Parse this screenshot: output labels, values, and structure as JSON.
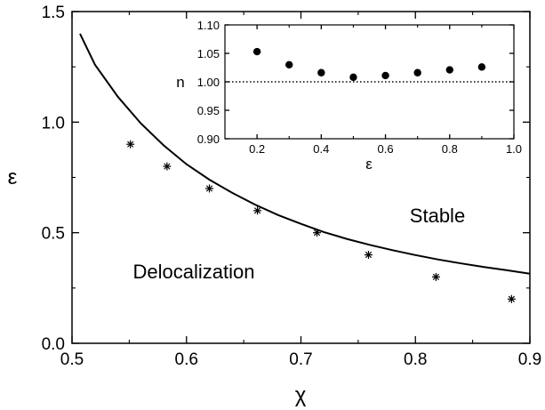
{
  "chart_data": [
    {
      "type": "scatter",
      "title": "",
      "xlabel": "χ",
      "ylabel": "ε",
      "xlim": [
        0.5,
        0.9
      ],
      "ylim": [
        0.0,
        1.5
      ],
      "xticks": [
        0.5,
        0.6,
        0.7,
        0.8,
        0.9
      ],
      "yticks": [
        0.0,
        0.5,
        1.0,
        1.5
      ],
      "xtick_labels": [
        "0.5",
        "0.6",
        "0.7",
        "0.8",
        "0.9"
      ],
      "ytick_labels": [
        "0.0",
        "0.5",
        "1.0",
        "1.5"
      ],
      "grid": false,
      "legend": "none",
      "series": [
        {
          "type": "scatter",
          "marker": "asterisk",
          "color": "#000000",
          "x": [
            0.551,
            0.583,
            0.62,
            0.662,
            0.714,
            0.759,
            0.818,
            0.884
          ],
          "y": [
            0.9,
            0.8,
            0.7,
            0.6,
            0.5,
            0.4,
            0.3,
            0.2
          ]
        },
        {
          "type": "line",
          "color": "#000000",
          "x": [
            0.507,
            0.52,
            0.54,
            0.56,
            0.58,
            0.6,
            0.62,
            0.64,
            0.66,
            0.68,
            0.7,
            0.72,
            0.74,
            0.76,
            0.78,
            0.8,
            0.82,
            0.84,
            0.86,
            0.88,
            0.9
          ],
          "y": [
            1.4,
            1.26,
            1.115,
            0.995,
            0.895,
            0.81,
            0.74,
            0.68,
            0.627,
            0.58,
            0.54,
            0.503,
            0.472,
            0.445,
            0.421,
            0.399,
            0.379,
            0.361,
            0.345,
            0.33,
            0.315
          ]
        }
      ],
      "annotations": [
        {
          "text": "Stable",
          "x": 0.79,
          "y": 0.56
        },
        {
          "text": "Delocalization",
          "x": 0.59,
          "y": 0.32
        }
      ]
    },
    {
      "type": "scatter",
      "title": "",
      "xlabel": "ε",
      "ylabel": "n",
      "xlim": [
        0.1,
        1.0
      ],
      "ylim": [
        0.9,
        1.1
      ],
      "xticks": [
        0.2,
        0.4,
        0.6,
        0.8,
        1.0
      ],
      "yticks": [
        0.9,
        0.95,
        1.0,
        1.05,
        1.1
      ],
      "xtick_labels": [
        "0.2",
        "0.4",
        "0.6",
        "0.8",
        "1.0"
      ],
      "ytick_labels": [
        "0.90",
        "0.95",
        "1.00",
        "1.05",
        "1.10"
      ],
      "grid": false,
      "legend": "none",
      "reference_line": {
        "y": 1.0,
        "style": "dotted"
      },
      "series": [
        {
          "type": "scatter",
          "marker": "filled-circle",
          "color": "#000000",
          "x": [
            0.2,
            0.3,
            0.4,
            0.5,
            0.6,
            0.7,
            0.8,
            0.9
          ],
          "y": [
            1.053,
            1.03,
            1.016,
            1.008,
            1.011,
            1.016,
            1.021,
            1.026
          ]
        }
      ]
    }
  ]
}
